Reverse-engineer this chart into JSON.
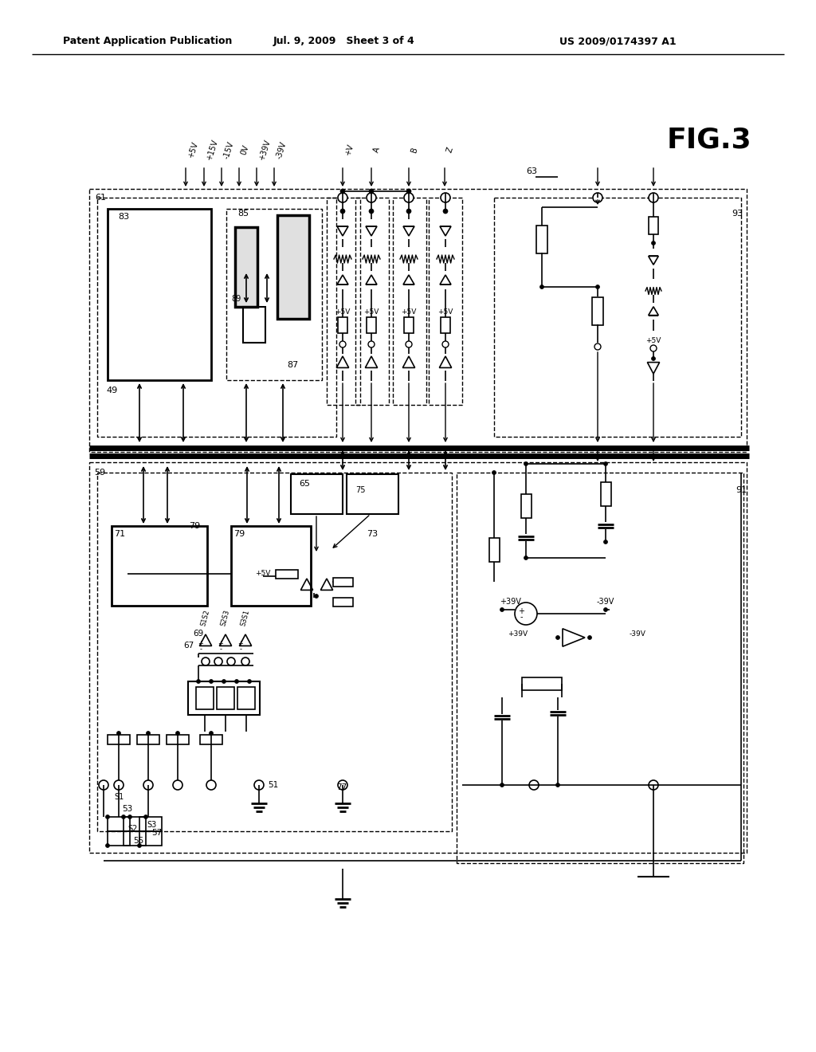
{
  "header_left": "Patent Application Publication",
  "header_center": "Jul. 9, 2009   Sheet 3 of 4",
  "header_right": "US 2009/0174397 A1",
  "fig_label": "FIG.3",
  "bg": "#ffffff"
}
